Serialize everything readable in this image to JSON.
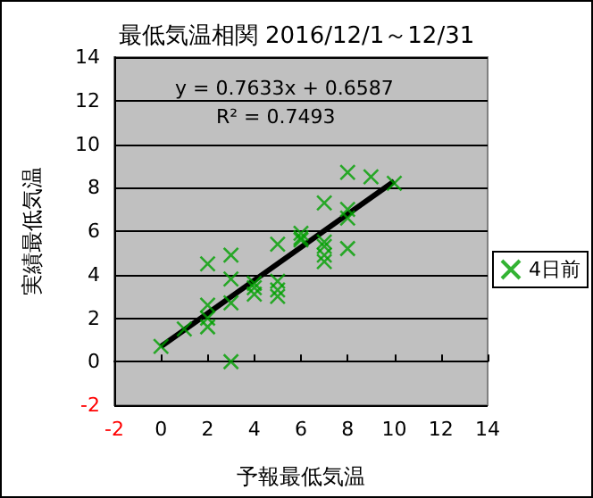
{
  "chart_data": {
    "type": "scatter",
    "title": "最低気温相関 2016/12/1～12/31",
    "xlabel": "予報最低気温",
    "ylabel": "実績最低気温",
    "annotations": [
      "y = 0.7633x + 0.6587",
      "R² = 0.7493"
    ],
    "series": [
      {
        "name": "4日前",
        "color": "#00a000",
        "marker": "cross",
        "x": [
          0,
          1,
          2,
          2,
          2,
          2,
          3,
          3,
          3,
          3,
          4,
          4,
          4,
          5,
          5,
          5,
          5,
          6,
          6,
          6,
          7,
          7,
          7,
          7,
          7,
          8,
          8,
          8,
          8,
          9,
          10
        ],
        "values": [
          0.7,
          1.5,
          2.6,
          2.0,
          1.6,
          4.5,
          4.9,
          3.8,
          2.7,
          0,
          3.6,
          3.4,
          3.1,
          5.4,
          3.7,
          3.3,
          3.0,
          5.9,
          5.7,
          5.6,
          7.3,
          5.5,
          5.3,
          4.9,
          4.6,
          8.7,
          7.0,
          6.6,
          5.2,
          8.5,
          8.2
        ]
      },
      {
        "type": "line",
        "color": "#000000",
        "marker": "none",
        "x": [
          0,
          10
        ],
        "values": [
          0.7,
          8.3
        ]
      }
    ],
    "xlim": [
      -2,
      14
    ],
    "xticks": [
      -2,
      0,
      2,
      4,
      6,
      8,
      10,
      12,
      14
    ],
    "ylim": [
      -2,
      14
    ],
    "yticks": [
      -2,
      0,
      2,
      4,
      6,
      8,
      10,
      12,
      14
    ],
    "grid": "y",
    "legend": "right"
  }
}
